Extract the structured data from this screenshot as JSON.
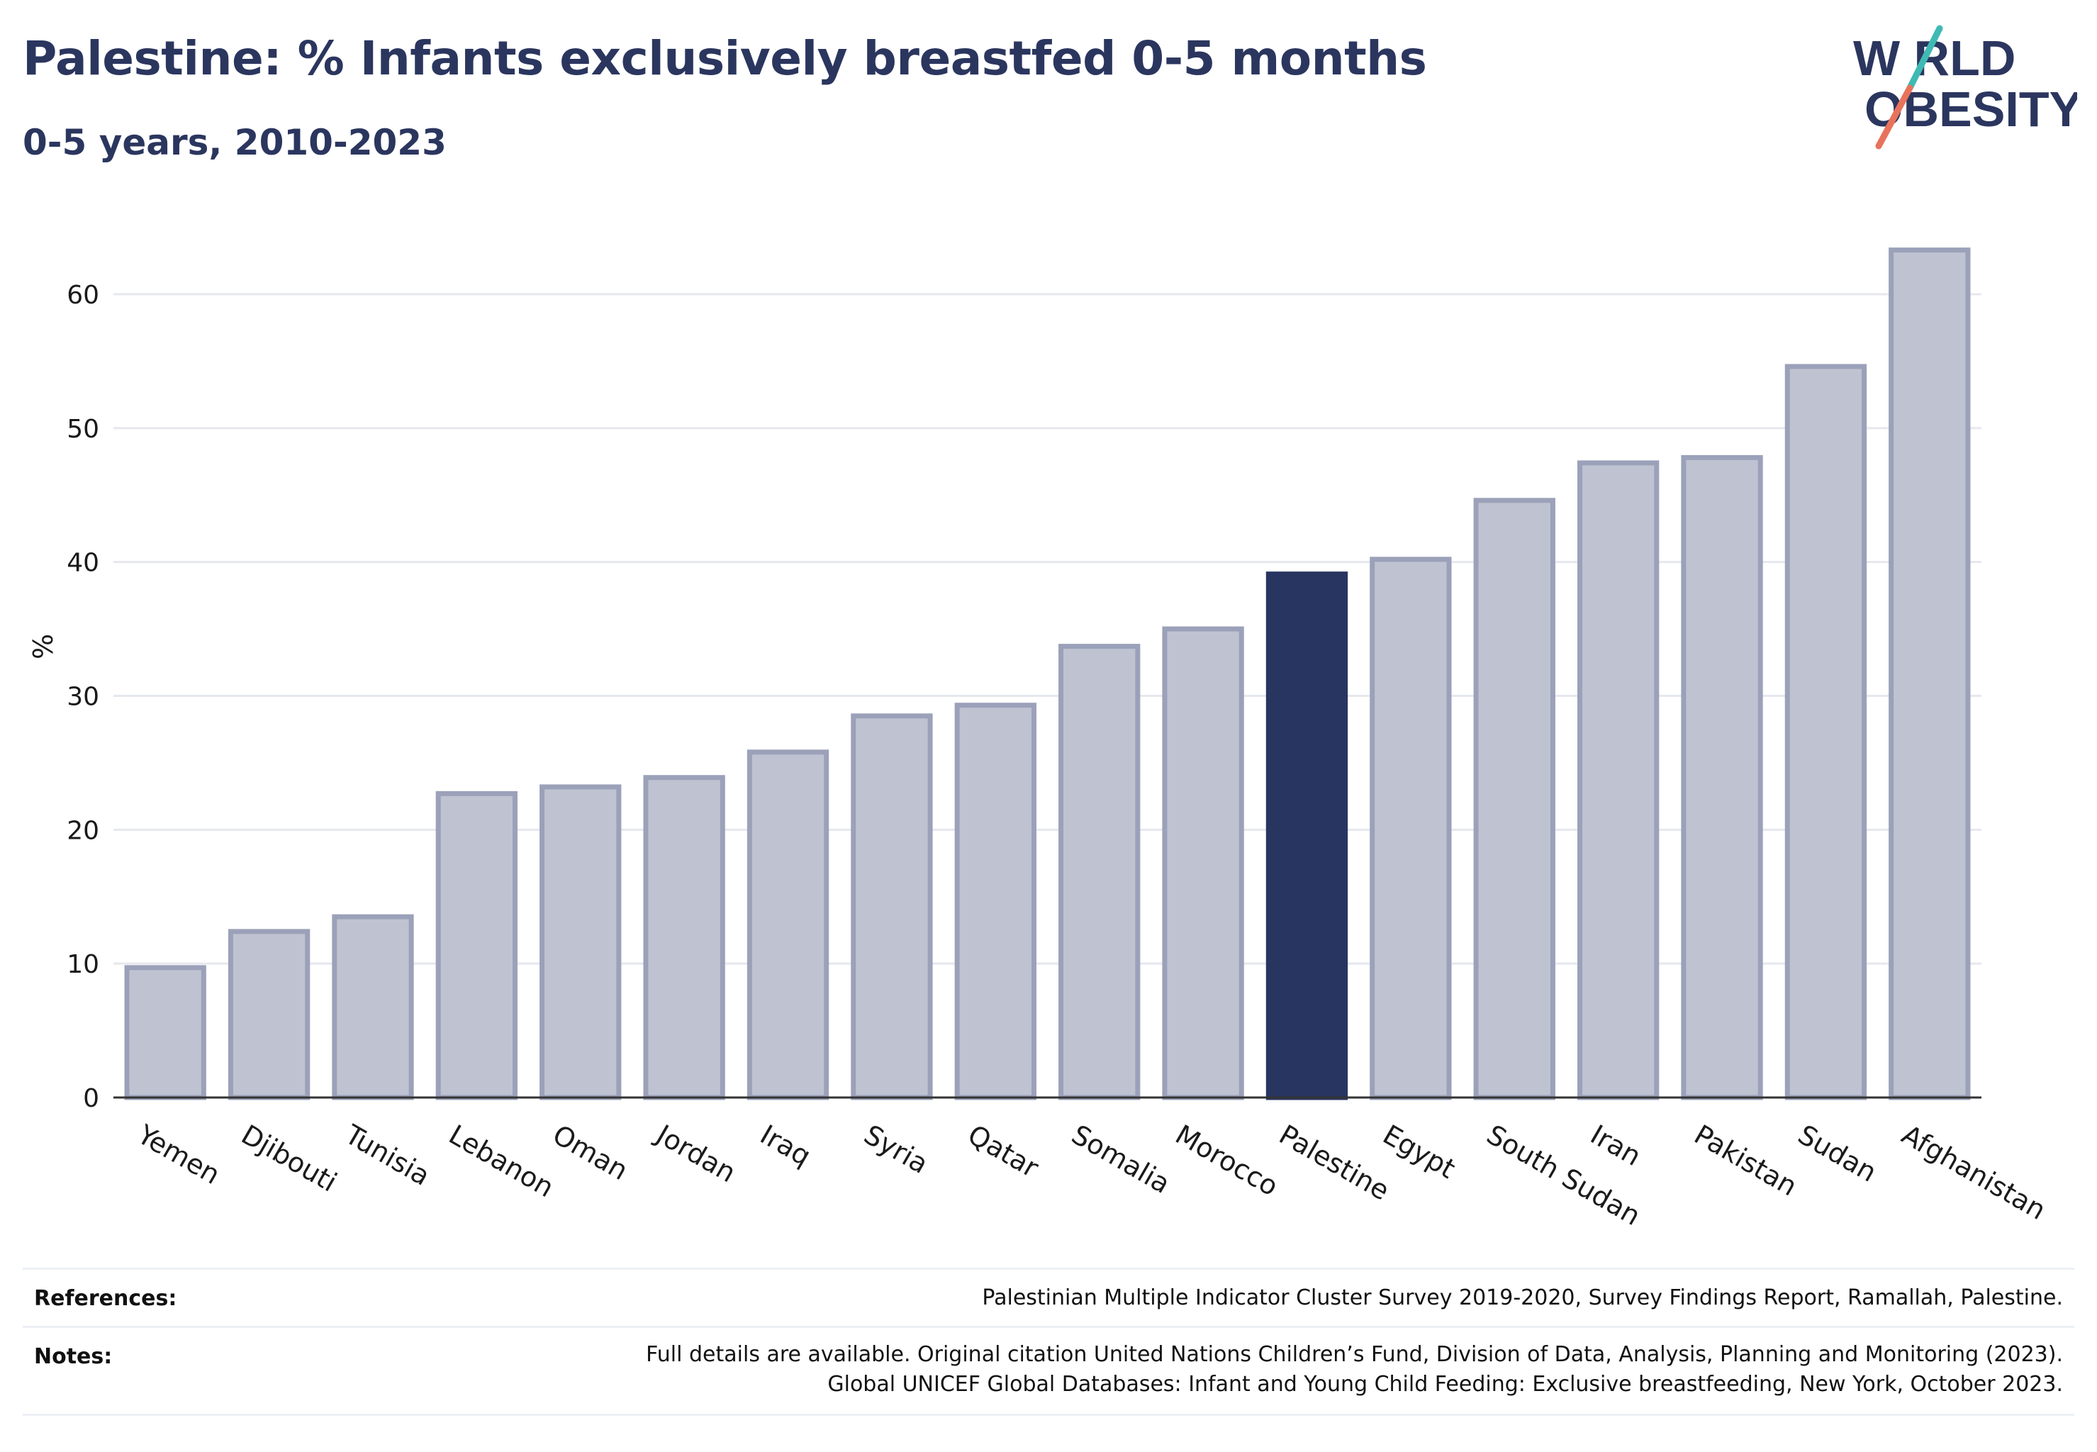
{
  "header": {
    "title": "Palestine: % Infants exclusively breastfed 0-5 months",
    "subtitle": "0-5 years, 2010-2023"
  },
  "logo": {
    "line1": "W RLD",
    "line2": "OBESITY",
    "text_color": "#2b365f",
    "slash_colors": [
      "#3fb9b4",
      "#e8735c"
    ]
  },
  "colors": {
    "bar": "#bfc3d1",
    "bar_edge": "#9ba1b9",
    "highlight": "#283561",
    "grid": "#e6e8ee",
    "axis": "#333333"
  },
  "chart_data": {
    "type": "bar",
    "categories": [
      "Yemen",
      "Djibouti",
      "Tunisia",
      "Lebanon",
      "Oman",
      "Jordan",
      "Iraq",
      "Syria",
      "Qatar",
      "Somalia",
      "Morocco",
      "Palestine",
      "Egypt",
      "South Sudan",
      "Iran",
      "Pakistan",
      "Sudan",
      "Afghanistan"
    ],
    "values": [
      9.7,
      12.4,
      13.5,
      22.7,
      23.2,
      23.9,
      25.8,
      28.5,
      29.3,
      33.7,
      35.0,
      39.1,
      40.2,
      44.6,
      47.4,
      47.8,
      54.6,
      63.3
    ],
    "highlight": "Palestine",
    "ylabel": "%",
    "ylim": [
      0,
      64.5
    ],
    "yticks": [
      0,
      10,
      20,
      30,
      40,
      50,
      60
    ],
    "grid": true,
    "legend": "none"
  },
  "footer": {
    "references_label": "References:",
    "references_text": "Palestinian Multiple Indicator Cluster Survey 2019-2020, Survey Findings Report, Ramallah, Palestine.",
    "notes_label": "Notes:",
    "notes_line1": "Full details are available. Original citation United Nations Children’s Fund, Division of Data, Analysis, Planning and Monitoring (2023).",
    "notes_line2": "Global UNICEF Global Databases: Infant and Young Child Feeding: Exclusive breastfeeding, New York, October 2023."
  }
}
